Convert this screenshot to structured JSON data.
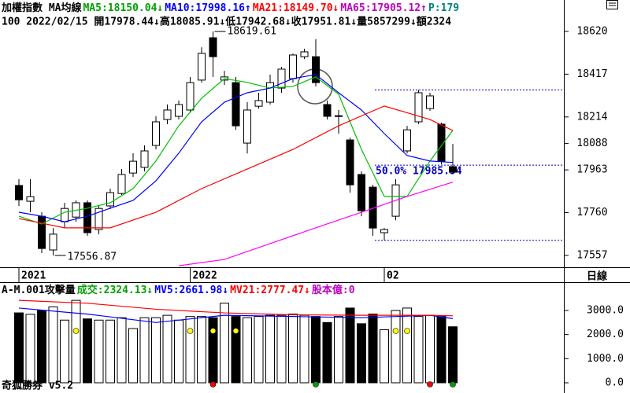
{
  "chart_data": {
    "type": "candlestick",
    "header_line1": [
      {
        "text": "加權指數 MA均線",
        "color": "#000000"
      },
      {
        "text": "MA5:18150.04↓",
        "color": "#00a000"
      },
      {
        "text": "MA10:17998.16↑",
        "color": "#0000ff"
      },
      {
        "text": "MA21:18149.70↓",
        "color": "#ff0000"
      },
      {
        "text": "MA65:17905.12↑",
        "color": "#c000c0"
      },
      {
        "text": "P:179",
        "color": "#008080"
      }
    ],
    "header_line2": "100 2022/02/15 開17978.44↓高18085.91↓低17942.68↓收17951.81↓量5857299↓額2324",
    "candles": {
      "open": [
        17889,
        17814,
        17743,
        17583,
        17717,
        17739,
        17807,
        17680,
        17792,
        17851,
        17948,
        17975,
        18079,
        18202,
        18217,
        18247,
        18389,
        18590,
        18389,
        18377,
        18090,
        18265,
        18284,
        18351,
        18396,
        18500,
        18500,
        18273,
        18217,
        18105,
        17941,
        17881,
        17665,
        17743,
        18053,
        18191,
        18254,
        18180,
        17978.44
      ],
      "high": [
        17919,
        17919,
        17762,
        17687,
        17807,
        17818,
        17818,
        17792,
        17874,
        17967,
        18042,
        18079,
        18217,
        18273,
        18292,
        18404,
        18545,
        18619.61,
        18433,
        18404,
        18284,
        18329,
        18415,
        18452,
        18515,
        18538,
        18583,
        18292,
        18247,
        18116,
        17956,
        17892,
        17687,
        17919,
        18172,
        18342.37,
        18329,
        18187,
        18085.91
      ],
      "low": [
        17792,
        17762,
        17568,
        17556.87,
        17687,
        17717,
        17650,
        17657,
        17777,
        17844,
        17930,
        17956,
        18060,
        18180,
        18202,
        18239,
        18377,
        18404,
        18366,
        18153,
        18041,
        18254,
        18273,
        18329,
        18377,
        18489,
        18359,
        18202,
        18135,
        17855,
        17743,
        17650,
        17628.71,
        17724,
        18041,
        18180,
        18243,
        17990,
        17942.68
      ],
      "close": [
        17821,
        17836,
        17590,
        17658,
        17780,
        17807,
        17665,
        17780,
        17855,
        17941,
        18004,
        18053,
        18191,
        18247,
        18273,
        18377,
        18516,
        18500,
        18404,
        18172,
        18247,
        18292,
        18377,
        18441,
        18508,
        18523,
        18377,
        18217,
        18220,
        17892,
        17769,
        17687,
        17680,
        17892,
        18153,
        18329,
        18314,
        18004,
        17951.81
      ]
    },
    "ylim": [
      17501,
      18769
    ],
    "yticks": [
      17557,
      17760,
      17963,
      18088,
      18214,
      18417,
      18620
    ],
    "ma_series": [
      {
        "color": "#00c000",
        "x": [
          0,
          2,
          4,
          6,
          8,
          10,
          12,
          14,
          16,
          18,
          20,
          22,
          24,
          26,
          28,
          30,
          32,
          34,
          36,
          38
        ],
        "values": [
          17743,
          17706,
          17762,
          17781,
          17807,
          17874,
          18005,
          18172,
          18303,
          18396,
          18378,
          18351,
          18359,
          18404,
          18322,
          18060,
          17837,
          17837,
          18005,
          18150.04
        ]
      },
      {
        "color": "#0000ff",
        "x": [
          0,
          2,
          4,
          6,
          8,
          10,
          12,
          14,
          16,
          18,
          20,
          22,
          24,
          26,
          28,
          30,
          32,
          34,
          36,
          38
        ],
        "values": [
          17762,
          17743,
          17717,
          17743,
          17781,
          17818,
          17911,
          18042,
          18191,
          18284,
          18329,
          18351,
          18396,
          18415,
          18329,
          18247,
          18135,
          18031,
          18005,
          17998.16
        ]
      },
      {
        "color": "#ff0000",
        "x": [
          0,
          4,
          8,
          12,
          16,
          20,
          24,
          28,
          32,
          36,
          38
        ],
        "values": [
          17732,
          17688,
          17688,
          17762,
          17874,
          17967,
          18060,
          18172,
          18266,
          18202,
          18149.7
        ]
      },
      {
        "color": "#ff00ff",
        "x": [
          14,
          18,
          22,
          26,
          30,
          34,
          38
        ],
        "values": [
          17508,
          17538,
          17613,
          17688,
          17762,
          17837,
          17905.12
        ]
      }
    ],
    "fib_levels": [
      18342.37,
      17985.54,
      17628.71
    ],
    "fib_label": "50.0% 17985.54",
    "date_labels": [
      {
        "index": 0,
        "label": "2021"
      },
      {
        "index": 15,
        "label": "2022"
      },
      {
        "index": 32,
        "label": "02"
      }
    ],
    "period_label": "日線",
    "volume": {
      "header": [
        {
          "text": "A-M.001攻擊量",
          "color": "#000000"
        },
        {
          "text": "成交:2324.13↓",
          "color": "#00a000"
        },
        {
          "text": "MV5:2661.98↓",
          "color": "#0000ff"
        },
        {
          "text": "MV21:2777.47↓",
          "color": "#ff0000"
        },
        {
          "text": "股本億:0",
          "color": "#c000c0"
        }
      ],
      "values": [
        2900,
        2840,
        3000,
        3150,
        2600,
        3420,
        2650,
        2600,
        2600,
        2700,
        2250,
        2700,
        2700,
        2800,
        2600,
        2750,
        2750,
        2700,
        3300,
        2750,
        2700,
        2750,
        2800,
        2800,
        2850,
        2800,
        2750,
        2500,
        2750,
        3100,
        2450,
        2850,
        2200,
        3000,
        3100,
        2750,
        2800,
        2750,
        2324.13
      ],
      "ylim": [
        -261,
        4141
      ],
      "yticks": [
        {
          "value": 0,
          "label": "0.0"
        },
        {
          "value": 1000,
          "label": "1000.0"
        },
        {
          "value": 2000,
          "label": "2000.0"
        },
        {
          "value": 3000,
          "label": "3000.0"
        }
      ],
      "mv_series": [
        {
          "color": "#0000ff",
          "x": [
            0,
            6,
            12,
            18,
            24,
            30,
            36,
            38
          ],
          "values": [
            3100,
            2850,
            2500,
            2800,
            2750,
            2700,
            2800,
            2661.98
          ]
        },
        {
          "color": "#ff0000",
          "x": [
            0,
            6,
            12,
            18,
            24,
            30,
            36,
            38
          ],
          "values": [
            3420,
            3300,
            3050,
            2900,
            2820,
            2800,
            2800,
            2777.47
          ]
        }
      ],
      "signals": [
        {
          "color": "#ffff00",
          "x": [
            5,
            15,
            17,
            19,
            33,
            34
          ]
        },
        {
          "color": "#ff0000",
          "x": [
            17,
            36
          ]
        },
        {
          "color": "#00a000",
          "x": [
            26,
            38
          ]
        }
      ]
    },
    "footer": "奇狐勝券 v5.2"
  }
}
